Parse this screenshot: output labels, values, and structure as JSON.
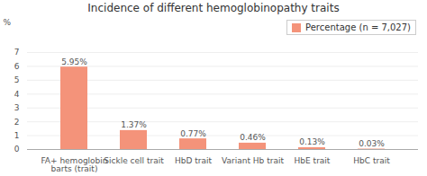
{
  "chart_data": {
    "type": "bar",
    "title": "Incidence of different hemoglobinopathy traits",
    "categories": [
      "FA+ hemoglobin\nbarts (trait)",
      "Sickle cell trait",
      "HbD trait",
      "Variant Hb trait",
      "HbE trait",
      "HbC trait"
    ],
    "series": [
      {
        "name": "Percentage (n = 7,027)",
        "color": "#f4937a",
        "values": [
          5.95,
          1.37,
          0.77,
          0.46,
          0.13,
          0.03
        ],
        "value_labels": [
          "5.95%",
          "1.37%",
          "0.77%",
          "0.46%",
          "0.13%",
          "0.03%"
        ]
      }
    ],
    "ylabel": "%",
    "ylim": [
      0,
      7
    ],
    "yticks": [
      0,
      1,
      2,
      3,
      4,
      5,
      6,
      7
    ],
    "grid": true,
    "legend": "upper right",
    "data_labels": true
  }
}
